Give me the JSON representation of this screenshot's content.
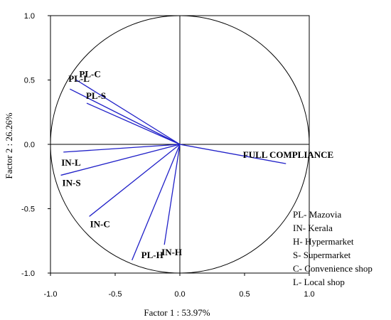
{
  "chart_data": {
    "type": "scatter",
    "subtype": "pca-correlation-circle",
    "xlabel": "Factor 1 : 53.97%",
    "ylabel": "Factor 2 : 26.26%",
    "xlim": [
      -1.0,
      1.0
    ],
    "ylim": [
      -1.0,
      1.0
    ],
    "x_ticks": [
      "-1.0",
      "-0.5",
      "0.0",
      "0.5",
      "1.0"
    ],
    "y_ticks": [
      "1.0",
      "0.5",
      "0.0",
      "-0.5",
      "-1.0"
    ],
    "grid": false,
    "vector_color": "#2020c8",
    "vectors": [
      {
        "label": "PL-C",
        "x": -0.8,
        "y": 0.5
      },
      {
        "label": "PL-L",
        "x": -0.85,
        "y": 0.43
      },
      {
        "label": "PL-S",
        "x": -0.72,
        "y": 0.32
      },
      {
        "label": "IN-L",
        "x": -0.9,
        "y": -0.06
      },
      {
        "label": "IN-S",
        "x": -0.92,
        "y": -0.24
      },
      {
        "label": "IN-C",
        "x": -0.7,
        "y": -0.56
      },
      {
        "label": "IN-H",
        "x": -0.12,
        "y": -0.78
      },
      {
        "label": "PL-H",
        "x": -0.37,
        "y": -0.9
      },
      {
        "label": "FULL COMPLIANCE",
        "x": 0.82,
        "y": -0.15
      }
    ],
    "legend": [
      "PL- Mazovia",
      "IN- Kerala",
      "H- Hypermarket",
      "S- Supermarket",
      "C- Convenience shop",
      "L- Local shop"
    ],
    "legend_position": "bottom-right"
  }
}
